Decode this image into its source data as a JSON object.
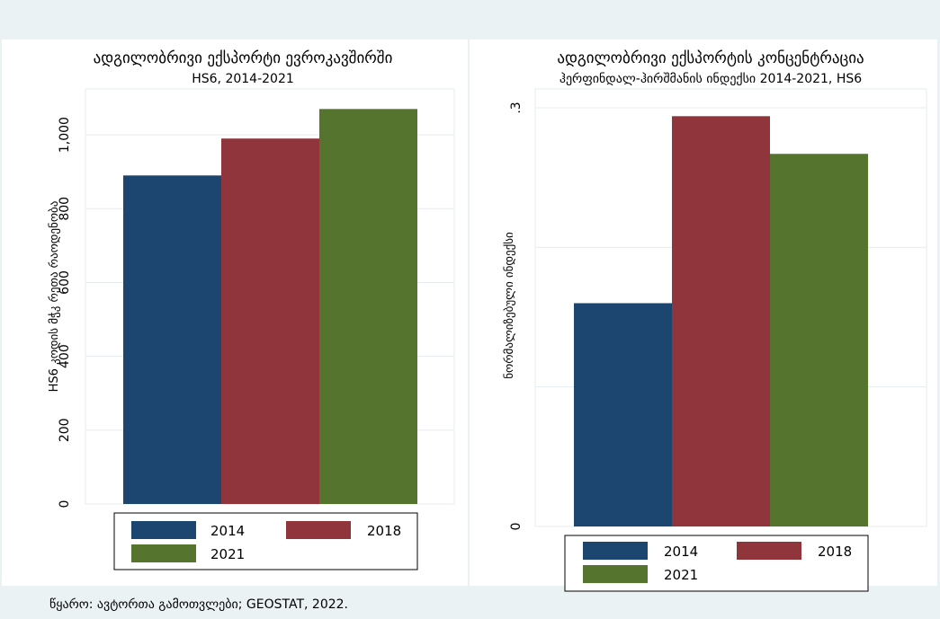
{
  "chart_data": [
    {
      "type": "bar",
      "title": "ადგილობრივი ექსპორტი ევროკავშირში",
      "subtitle": "HS6, 2014-2021",
      "ylabel": "HS6 კოდის მჭკ რეთა რაოდენობა",
      "ylim": [
        0,
        1100
      ],
      "yticks": [
        0,
        200,
        400,
        600,
        800,
        1000
      ],
      "ytick_labels": [
        "0",
        "200",
        "400",
        "600",
        "800",
        "1,000"
      ],
      "grid": true,
      "legend_position": "bottom",
      "series": [
        {
          "name": "2014",
          "color": "#1c4670",
          "values": [
            890
          ]
        },
        {
          "name": "2018",
          "color": "#90353b",
          "values": [
            990
          ]
        },
        {
          "name": "2021",
          "color": "#55752f",
          "values": [
            1070
          ]
        }
      ]
    },
    {
      "type": "bar",
      "title": "ადგილობრივი ექსპორტის კონცენტრაცია",
      "subtitle": "ჰერფინდალ-ჰირშმანის ინდექსი 2014-2021, HS6",
      "ylabel": "ნორმალიზებული ინდექსი",
      "ylim": [
        0,
        0.3
      ],
      "yticks": [
        0,
        0.1,
        0.2,
        0.3
      ],
      "ytick_labels": [
        "0",
        "",
        "",
        ".3"
      ],
      "grid": true,
      "legend_position": "bottom",
      "series": [
        {
          "name": "2014",
          "color": "#1c4670",
          "values": [
            0.16
          ]
        },
        {
          "name": "2018",
          "color": "#90353b",
          "values": [
            0.294
          ]
        },
        {
          "name": "2021",
          "color": "#55752f",
          "values": [
            0.267
          ]
        }
      ]
    }
  ],
  "source_note": "წყარო: ავტორთა გამოთვლები; GEOSTAT, 2022."
}
